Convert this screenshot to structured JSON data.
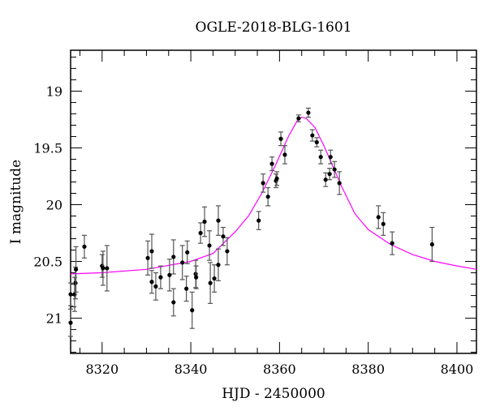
{
  "chart_data": {
    "type": "scatter",
    "title": "OGLE-2018-BLG-1601",
    "xlabel": "HJD - 2450000",
    "ylabel": "I magnitude",
    "xlim": [
      8312.9,
      8404.4
    ],
    "ylim": [
      21.31,
      18.64
    ],
    "y_inverted": true,
    "x_major_ticks": [
      8320,
      8340,
      8360,
      8380,
      8400
    ],
    "x_minor_step": 5,
    "y_major_ticks": [
      19,
      19.5,
      20,
      20.5,
      21
    ],
    "y_tick_labels": [
      "19",
      "19.5",
      "20",
      "20.5",
      "21"
    ],
    "y_minor_step": 0.1,
    "grid": false,
    "colors": {
      "points": "#000000",
      "errorbars": "#555555",
      "model": "#ff00ff"
    },
    "series": [
      {
        "name": "data",
        "points": [
          [
            8312.9,
            21.04,
            0.12
          ],
          [
            8313.8,
            20.79,
            0.15
          ],
          [
            8314.0,
            20.69,
            0.14
          ],
          [
            8314.1,
            20.57,
            0.2
          ],
          [
            8312.9,
            20.79,
            0.1
          ],
          [
            8316.0,
            20.37,
            0.1
          ],
          [
            8320.0,
            20.54,
            0.1
          ],
          [
            8320.2,
            20.56,
            0.15
          ],
          [
            8321.1,
            20.56,
            0.2
          ],
          [
            8330.3,
            20.47,
            0.15
          ],
          [
            8331.2,
            20.41,
            0.15
          ],
          [
            8331.2,
            20.68,
            0.1
          ],
          [
            8332.1,
            20.72,
            0.12
          ],
          [
            8333.2,
            20.64,
            0.1
          ],
          [
            8335.2,
            20.62,
            0.14
          ],
          [
            8336.1,
            20.46,
            0.15
          ],
          [
            8336.1,
            20.86,
            0.12
          ],
          [
            8338.1,
            20.51,
            0.15
          ],
          [
            8339.2,
            20.42,
            0.1
          ],
          [
            8339.0,
            20.74,
            0.11
          ],
          [
            8340.3,
            20.93,
            0.16
          ],
          [
            8341.1,
            20.61,
            0.12
          ],
          [
            8341.2,
            20.64,
            0.1
          ],
          [
            8342.2,
            20.25,
            0.09
          ],
          [
            8343.1,
            20.15,
            0.13
          ],
          [
            8344.2,
            20.36,
            0.13
          ],
          [
            8344.4,
            20.69,
            0.18
          ],
          [
            8345.3,
            20.65,
            0.12
          ],
          [
            8346.2,
            20.53,
            0.14
          ],
          [
            8346.2,
            20.14,
            0.13
          ],
          [
            8347.3,
            20.28,
            0.08
          ],
          [
            8348.2,
            20.41,
            0.12
          ],
          [
            8355.3,
            20.14,
            0.08
          ],
          [
            8356.3,
            19.81,
            0.08
          ],
          [
            8357.4,
            19.93,
            0.08
          ],
          [
            8358.3,
            19.64,
            0.06
          ],
          [
            8359.2,
            19.79,
            0.06
          ],
          [
            8359.4,
            19.77,
            0.06
          ],
          [
            8360.3,
            19.42,
            0.06
          ],
          [
            8361.2,
            19.56,
            0.08
          ],
          [
            8364.3,
            19.24,
            0.03
          ],
          [
            8366.5,
            19.19,
            0.04
          ],
          [
            8367.4,
            19.39,
            0.05
          ],
          [
            8368.4,
            19.45,
            0.04
          ],
          [
            8369.3,
            19.58,
            0.06
          ],
          [
            8370.4,
            19.78,
            0.06
          ],
          [
            8371.3,
            19.73,
            0.05
          ],
          [
            8371.5,
            19.58,
            0.06
          ],
          [
            8372.4,
            19.69,
            0.07
          ],
          [
            8373.5,
            19.81,
            0.1
          ],
          [
            8382.3,
            20.11,
            0.1
          ],
          [
            8383.4,
            20.17,
            0.1
          ],
          [
            8385.4,
            20.34,
            0.1
          ],
          [
            8394.4,
            20.35,
            0.15
          ]
        ]
      },
      {
        "name": "model",
        "points": [
          [
            8312.9,
            20.61
          ],
          [
            8320,
            20.6
          ],
          [
            8330,
            20.57
          ],
          [
            8340,
            20.5
          ],
          [
            8345,
            20.43
          ],
          [
            8350,
            20.24
          ],
          [
            8353,
            20.1
          ],
          [
            8356,
            19.9
          ],
          [
            8359,
            19.66
          ],
          [
            8362,
            19.4
          ],
          [
            8364,
            19.26
          ],
          [
            8365,
            19.23
          ],
          [
            8366,
            19.24
          ],
          [
            8368,
            19.32
          ],
          [
            8370,
            19.48
          ],
          [
            8372,
            19.66
          ],
          [
            8374,
            19.84
          ],
          [
            8377,
            20.08
          ],
          [
            8380,
            20.22
          ],
          [
            8385,
            20.35
          ],
          [
            8390,
            20.44
          ],
          [
            8395,
            20.5
          ],
          [
            8400,
            20.54
          ],
          [
            8404.4,
            20.57
          ]
        ]
      }
    ]
  }
}
